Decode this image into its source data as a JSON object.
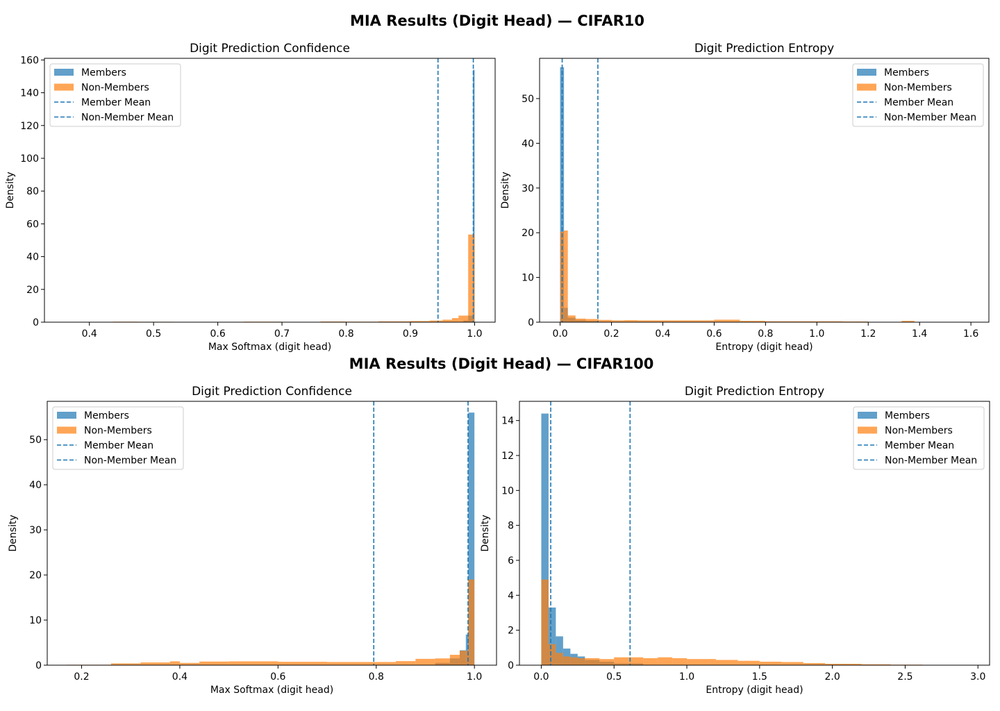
{
  "colors": {
    "members": "#1f77b4",
    "non_members": "#ff7f0e",
    "mean_line": "#1f77b4"
  },
  "chart_data": [
    {
      "type": "histogram",
      "figure_title": "MIA Results (Digit Head) — CIFAR10",
      "title": "Digit Prediction Confidence",
      "xlabel": "Max Softmax (digit head)",
      "ylabel": "Density",
      "xlim": [
        0.33,
        1.032
      ],
      "ylim": [
        0,
        161
      ],
      "xticks": [
        0.4,
        0.5,
        0.6,
        0.7,
        0.8,
        0.9,
        1.0
      ],
      "xtick_labels": [
        "0.4",
        "0.5",
        "0.6",
        "0.7",
        "0.8",
        "0.9",
        "1.0"
      ],
      "yticks": [
        0,
        20,
        40,
        60,
        80,
        100,
        120,
        140,
        160
      ],
      "ytick_labels": [
        "0",
        "20",
        "40",
        "60",
        "80",
        "100",
        "120",
        "140",
        "160"
      ],
      "legend_position": "upper-left",
      "legend": [
        "Members",
        "Non-Members",
        "Member Mean",
        "Non-Member Mean"
      ],
      "member_mean": 0.998,
      "non_member_mean": 0.943,
      "series": [
        {
          "name": "Members",
          "bins": [
            [
              0.9825,
              0.99,
              1.0
            ],
            [
              0.99,
              0.9975,
              4.0
            ],
            [
              0.9975,
              1.0,
              154.0
            ]
          ]
        },
        {
          "name": "Non-Members",
          "bins": [
            [
              0.437,
              0.475,
              0.3
            ],
            [
              0.475,
              0.53,
              0.25
            ],
            [
              0.53,
              0.58,
              0.2
            ],
            [
              0.58,
              0.64,
              0.2
            ],
            [
              0.64,
              0.7,
              0.3
            ],
            [
              0.7,
              0.76,
              0.2
            ],
            [
              0.76,
              0.8,
              0.4
            ],
            [
              0.8,
              0.85,
              0.3
            ],
            [
              0.85,
              0.9,
              0.5
            ],
            [
              0.9,
              0.93,
              0.7
            ],
            [
              0.93,
              0.95,
              1.0
            ],
            [
              0.95,
              0.965,
              1.5
            ],
            [
              0.965,
              0.975,
              2.5
            ],
            [
              0.975,
              0.99,
              4.0
            ],
            [
              0.99,
              1.0,
              53.5
            ]
          ]
        }
      ]
    },
    {
      "type": "histogram",
      "figure_title": "",
      "title": "Digit Prediction Entropy",
      "xlabel": "Entropy (digit head)",
      "ylabel": "Density",
      "xlim": [
        -0.08,
        1.67
      ],
      "ylim": [
        0,
        59
      ],
      "xticks": [
        0.0,
        0.2,
        0.4,
        0.6,
        0.8,
        1.0,
        1.2,
        1.4,
        1.6
      ],
      "xtick_labels": [
        "0.0",
        "0.2",
        "0.4",
        "0.6",
        "0.8",
        "1.0",
        "1.2",
        "1.4",
        "1.6"
      ],
      "yticks": [
        0,
        10,
        20,
        30,
        40,
        50
      ],
      "ytick_labels": [
        "0",
        "10",
        "20",
        "30",
        "40",
        "50"
      ],
      "legend_position": "upper-right",
      "legend": [
        "Members",
        "Non-Members",
        "Member Mean",
        "Non-Member Mean"
      ],
      "member_mean": 0.008,
      "non_member_mean": 0.147,
      "series": [
        {
          "name": "Members",
          "bins": [
            [
              0.0,
              0.015,
              57.0
            ],
            [
              0.015,
              0.03,
              3.2
            ],
            [
              0.03,
              0.06,
              1.0
            ],
            [
              0.06,
              0.1,
              0.5
            ],
            [
              0.1,
              0.15,
              0.3
            ]
          ]
        },
        {
          "name": "Non-Members",
          "bins": [
            [
              0.0,
              0.015,
              20.2
            ],
            [
              0.015,
              0.03,
              20.5
            ],
            [
              0.03,
              0.06,
              1.5
            ],
            [
              0.06,
              0.1,
              0.8
            ],
            [
              0.1,
              0.15,
              0.7
            ],
            [
              0.15,
              0.2,
              0.5
            ],
            [
              0.2,
              0.25,
              0.4
            ],
            [
              0.25,
              0.3,
              0.45
            ],
            [
              0.3,
              0.4,
              0.4
            ],
            [
              0.4,
              0.5,
              0.4
            ],
            [
              0.5,
              0.6,
              0.4
            ],
            [
              0.6,
              0.7,
              0.55
            ],
            [
              0.7,
              0.8,
              0.3
            ],
            [
              0.8,
              0.9,
              0.2
            ],
            [
              0.9,
              1.0,
              0.2
            ],
            [
              1.0,
              1.1,
              0.2
            ],
            [
              1.1,
              1.2,
              0.15
            ],
            [
              1.2,
              1.3,
              0.05
            ],
            [
              1.33,
              1.38,
              0.3
            ]
          ]
        }
      ]
    },
    {
      "type": "histogram",
      "figure_title": "MIA Results (Digit Head) — CIFAR100",
      "title": "Digit Prediction Confidence",
      "xlabel": "Max Softmax (digit head)",
      "ylabel": "Density",
      "xlim": [
        0.13,
        1.045
      ],
      "ylim": [
        0,
        58.5
      ],
      "xticks": [
        0.2,
        0.4,
        0.6,
        0.8,
        1.0
      ],
      "xtick_labels": [
        "0.2",
        "0.4",
        "0.6",
        "0.8",
        "1.0"
      ],
      "yticks": [
        0,
        10,
        20,
        30,
        40,
        50
      ],
      "ytick_labels": [
        "0",
        "10",
        "20",
        "30",
        "40",
        "50"
      ],
      "legend_position": "upper-left",
      "legend": [
        "Members",
        "Non-Members",
        "Member Mean",
        "Non-Member Mean"
      ],
      "member_mean": 0.987,
      "non_member_mean": 0.795,
      "series": [
        {
          "name": "Members",
          "bins": [
            [
              0.92,
              0.95,
              0.5
            ],
            [
              0.95,
              0.97,
              1.5
            ],
            [
              0.97,
              0.9825,
              3.3
            ],
            [
              0.9825,
              0.9875,
              6.8
            ],
            [
              0.9875,
              1.0,
              56.0
            ]
          ]
        },
        {
          "name": "Non-Members",
          "bins": [
            [
              0.17,
              0.26,
              0.1
            ],
            [
              0.26,
              0.32,
              0.4
            ],
            [
              0.32,
              0.38,
              0.6
            ],
            [
              0.38,
              0.4,
              0.85
            ],
            [
              0.4,
              0.44,
              0.5
            ],
            [
              0.44,
              0.5,
              0.8
            ],
            [
              0.5,
              0.6,
              0.85
            ],
            [
              0.6,
              0.7,
              0.75
            ],
            [
              0.7,
              0.8,
              0.7
            ],
            [
              0.8,
              0.84,
              0.7
            ],
            [
              0.84,
              0.88,
              0.9
            ],
            [
              0.88,
              0.92,
              1.4
            ],
            [
              0.92,
              0.95,
              1.5
            ],
            [
              0.95,
              0.97,
              2.3
            ],
            [
              0.97,
              0.9875,
              3.2
            ],
            [
              0.9875,
              1.0,
              19.0
            ]
          ]
        }
      ]
    },
    {
      "type": "histogram",
      "figure_title": "",
      "title": "Digit Prediction Entropy",
      "xlabel": "Entropy (digit head)",
      "ylabel": "Density",
      "xlim": [
        -0.15,
        3.08
      ],
      "ylim": [
        0,
        15.1
      ],
      "xticks": [
        0.0,
        0.5,
        1.0,
        1.5,
        2.0,
        2.5,
        3.0
      ],
      "xtick_labels": [
        "0.0",
        "0.5",
        "1.0",
        "1.5",
        "2.0",
        "2.5",
        "3.0"
      ],
      "yticks": [
        0,
        2,
        4,
        6,
        8,
        10,
        12,
        14
      ],
      "ytick_labels": [
        "0",
        "2",
        "4",
        "6",
        "8",
        "10",
        "12",
        "14"
      ],
      "legend_position": "upper-right",
      "legend": [
        "Members",
        "Non-Members",
        "Member Mean",
        "Non-Member Mean"
      ],
      "member_mean": 0.065,
      "non_member_mean": 0.61,
      "series": [
        {
          "name": "Members",
          "bins": [
            [
              0.0,
              0.05,
              14.4
            ],
            [
              0.05,
              0.1,
              3.3
            ],
            [
              0.1,
              0.15,
              1.65
            ],
            [
              0.15,
              0.2,
              0.95
            ],
            [
              0.2,
              0.25,
              0.65
            ],
            [
              0.25,
              0.3,
              0.5
            ],
            [
              0.3,
              0.4,
              0.3
            ],
            [
              0.4,
              0.5,
              0.2
            ],
            [
              0.5,
              0.7,
              0.1
            ]
          ]
        },
        {
          "name": "Non-Members",
          "bins": [
            [
              0.0,
              0.05,
              4.9
            ],
            [
              0.05,
              0.1,
              1.2
            ],
            [
              0.1,
              0.15,
              0.7
            ],
            [
              0.15,
              0.2,
              0.5
            ],
            [
              0.2,
              0.25,
              0.45
            ],
            [
              0.25,
              0.3,
              0.4
            ],
            [
              0.3,
              0.4,
              0.4
            ],
            [
              0.4,
              0.5,
              0.35
            ],
            [
              0.5,
              0.6,
              0.45
            ],
            [
              0.6,
              0.7,
              0.45
            ],
            [
              0.7,
              0.8,
              0.4
            ],
            [
              0.8,
              0.9,
              0.45
            ],
            [
              0.9,
              1.0,
              0.4
            ],
            [
              1.0,
              1.1,
              0.35
            ],
            [
              1.1,
              1.2,
              0.35
            ],
            [
              1.2,
              1.35,
              0.3
            ],
            [
              1.35,
              1.5,
              0.25
            ],
            [
              1.5,
              1.65,
              0.2
            ],
            [
              1.65,
              1.8,
              0.18
            ],
            [
              1.8,
              1.95,
              0.12
            ],
            [
              1.95,
              2.2,
              0.08
            ],
            [
              2.2,
              2.4,
              0.05
            ],
            [
              2.4,
              2.62,
              0.03
            ]
          ]
        }
      ]
    }
  ]
}
